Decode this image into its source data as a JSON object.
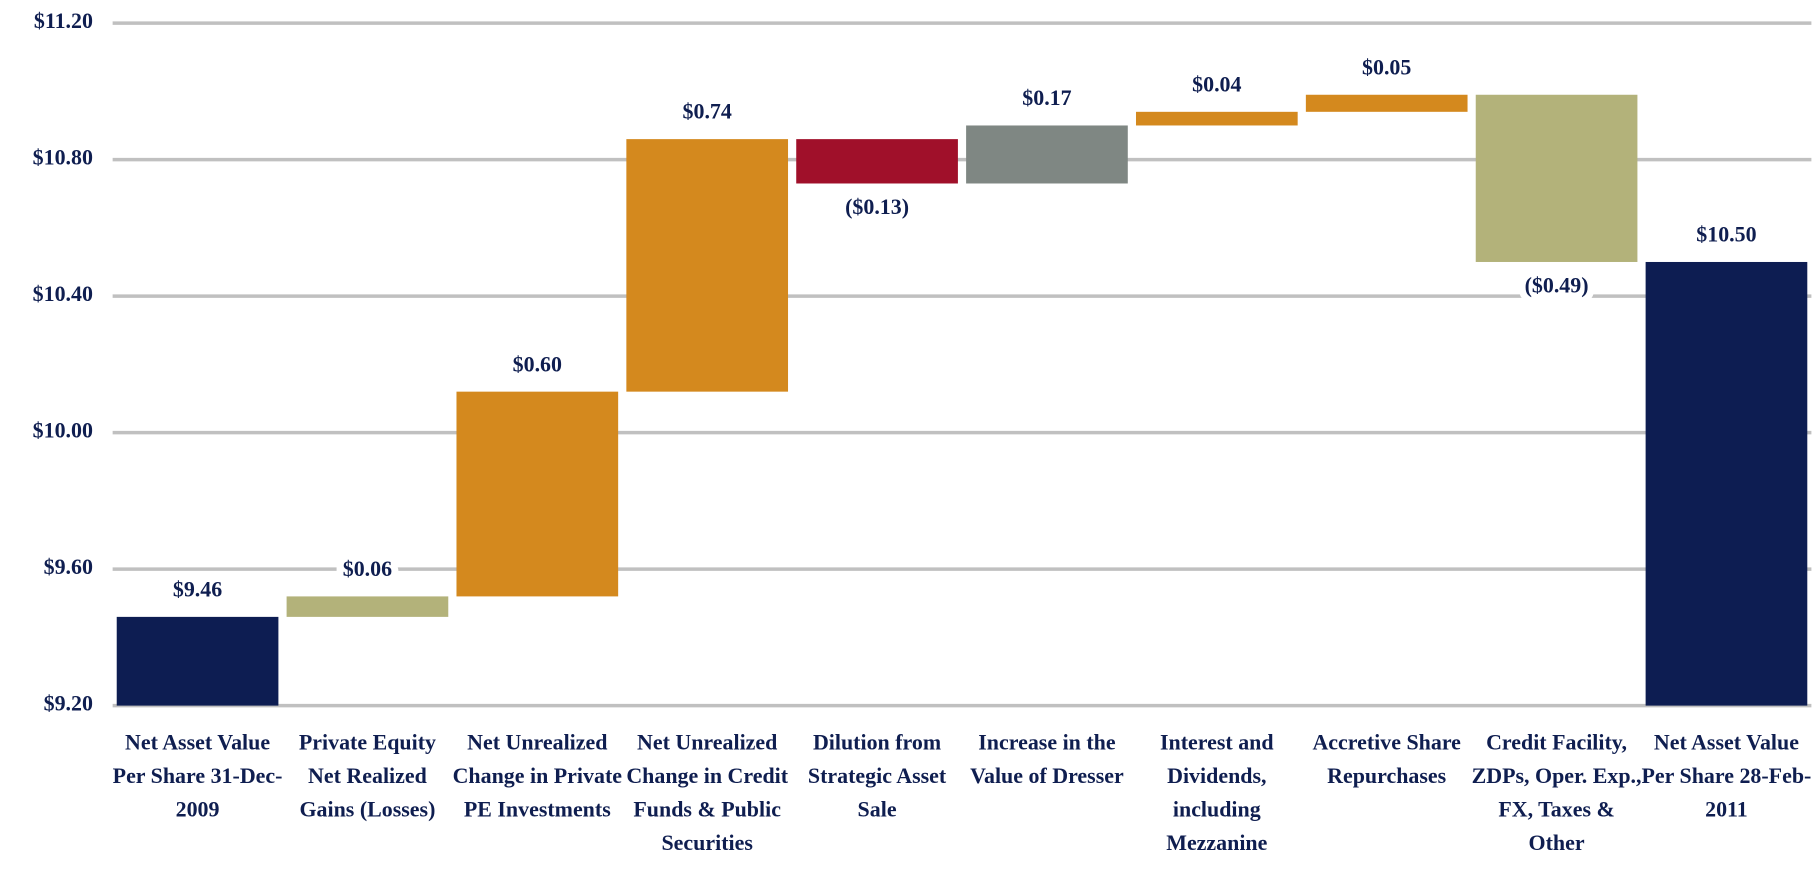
{
  "chart_data": {
    "type": "waterfall",
    "categories": [
      "Net Asset Value Per Share 31-Dec-2009",
      "Private Equity Net Realized Gains (Losses)",
      "Net Unrealized Change in Private PE Investments",
      "Net Unrealized Change in Credit Funds & Public Securities",
      "Dilution from Strategic Asset Sale",
      "Increase in the Value of Dresser",
      "Interest and Dividends, including Mezzanine",
      "Accretive Share Repurchases",
      "Credit Facility, ZDPs, Oper. Exp., FX, Taxes & Other",
      "Net Asset Value Per Share 28-Feb-2011"
    ],
    "values": [
      9.46,
      0.06,
      0.6,
      0.74,
      -0.13,
      0.17,
      0.04,
      0.05,
      -0.49,
      10.5
    ],
    "value_labels": [
      "$9.46",
      "$0.06",
      "$0.60",
      "$0.74",
      "($0.13)",
      "$0.17",
      "$0.04",
      "$0.05",
      "($0.49)",
      "$10.50"
    ],
    "colors": [
      "#0d1d52",
      "#b3b27a",
      "#d4891e",
      "#d4891e",
      "#a0102a",
      "#7f8783",
      "#d4891e",
      "#d4891e",
      "#b3b27a",
      "#0d1d52"
    ],
    "ylim": [
      9.2,
      11.2
    ],
    "yticks": [
      {
        "value": 9.2,
        "label": "$9.20"
      },
      {
        "value": 9.6,
        "label": "$9.60"
      },
      {
        "value": 10.0,
        "label": "$10.00"
      },
      {
        "value": 10.4,
        "label": "$10.40"
      },
      {
        "value": 10.8,
        "label": "$10.80"
      },
      {
        "value": 11.2,
        "label": "$11.20"
      }
    ],
    "grid": true
  }
}
